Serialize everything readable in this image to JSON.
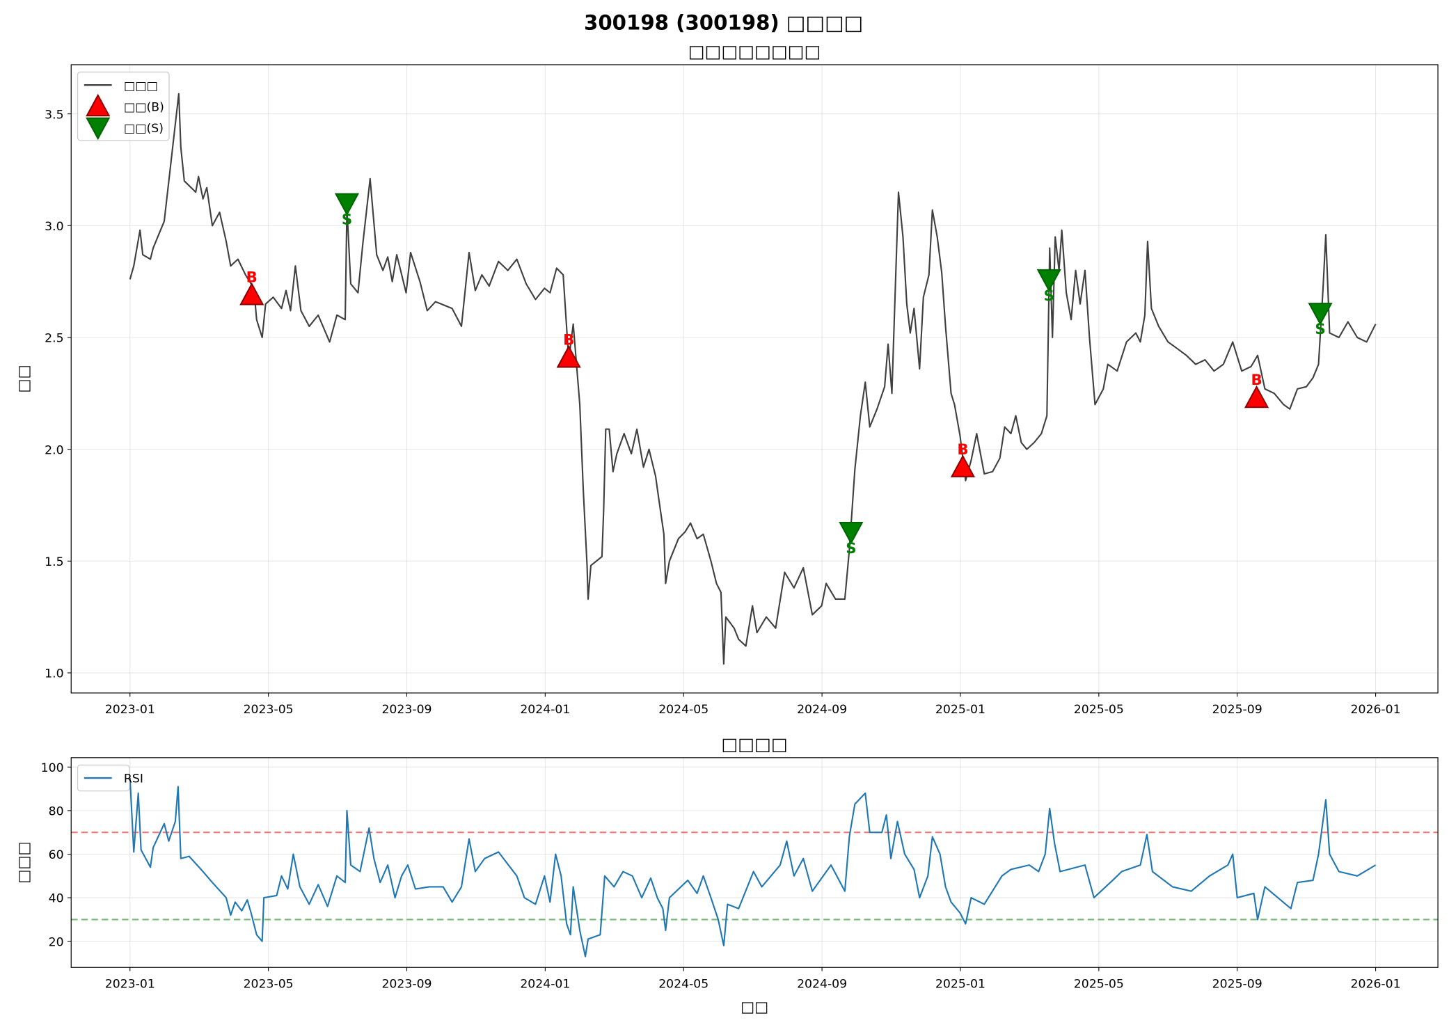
{
  "title": "300198 (300198) □□□□",
  "chart_data": [
    {
      "type": "line",
      "title": "□□□□□□□□",
      "ylabel": "□□",
      "xlim": [
        -1.7,
        37.8
      ],
      "ylim": [
        0.91,
        3.72
      ],
      "grid": true,
      "legend": "upper left",
      "xticks": [
        {
          "value": 0,
          "label": "2023-01"
        },
        {
          "value": 4,
          "label": "2023-05"
        },
        {
          "value": 8,
          "label": "2023-09"
        },
        {
          "value": 12,
          "label": "2024-01"
        },
        {
          "value": 16,
          "label": "2024-05"
        },
        {
          "value": 20,
          "label": "2024-09"
        },
        {
          "value": 24,
          "label": "2025-01"
        },
        {
          "value": 28,
          "label": "2025-05"
        },
        {
          "value": 32,
          "label": "2025-09"
        },
        {
          "value": 36,
          "label": "2026-01"
        }
      ],
      "yticks": [
        {
          "value": 1.0,
          "label": "1.0"
        },
        1.5,
        {
          "value": 2.0,
          "label": "2.0"
        },
        2.5,
        {
          "value": 3.0,
          "label": "3.0"
        },
        3.5
      ],
      "series": [
        {
          "name": "□□□",
          "type": "line",
          "color": "#404040",
          "x": [
            0,
            0.11,
            0.29,
            0.37,
            0.59,
            0.67,
            0.99,
            1.41,
            1.47,
            1.57,
            1.9,
            1.98,
            2.11,
            2.22,
            2.38,
            2.59,
            2.78,
            2.91,
            3.12,
            3.34,
            3.58,
            3.66,
            3.82,
            3.92,
            4.14,
            4.38,
            4.51,
            4.64,
            4.78,
            4.94,
            5.18,
            5.44,
            5.77,
            5.98,
            6.22,
            6.27,
            6.38,
            6.59,
            6.73,
            6.94,
            7.13,
            7.31,
            7.45,
            7.58,
            7.71,
            7.98,
            8.11,
            8.38,
            8.59,
            8.83,
            9.31,
            9.58,
            9.8,
            9.98,
            10.17,
            10.38,
            10.65,
            10.92,
            11.18,
            11.45,
            11.72,
            11.98,
            12.14,
            12.33,
            12.52,
            12.68,
            12.81,
            13.0,
            13.1,
            13.21,
            13.24,
            13.32,
            13.64,
            13.69,
            13.75,
            13.85,
            13.96,
            14.07,
            14.28,
            14.49,
            14.65,
            14.84,
            15.0,
            15.19,
            15.29,
            15.43,
            15.48,
            15.59,
            15.85,
            16.04,
            16.2,
            16.39,
            16.57,
            16.79,
            16.95,
            17.08,
            17.16,
            17.22,
            17.46,
            17.59,
            17.8,
            17.99,
            18.12,
            18.39,
            18.66,
            18.92,
            19.19,
            19.46,
            19.72,
            19.99,
            20.12,
            20.39,
            20.66,
            20.79,
            20.95,
            21.11,
            21.25,
            21.38,
            21.59,
            21.81,
            21.91,
            22.02,
            22.07,
            22.21,
            22.34,
            22.45,
            22.55,
            22.66,
            22.82,
            22.93,
            23.09,
            23.19,
            23.33,
            23.46,
            23.57,
            23.73,
            23.83,
            23.99,
            24.15,
            24.31,
            24.47,
            24.69,
            24.93,
            25.14,
            25.28,
            25.46,
            25.6,
            25.76,
            25.92,
            26.13,
            26.34,
            26.5,
            26.58,
            26.66,
            26.74,
            26.85,
            26.93,
            27.06,
            27.2,
            27.33,
            27.46,
            27.6,
            27.73,
            27.89,
            28.13,
            28.26,
            28.53,
            28.8,
            29.07,
            29.2,
            29.33,
            29.41,
            29.52,
            29.73,
            30.0,
            30.27,
            30.53,
            30.8,
            31.07,
            31.33,
            31.6,
            31.87,
            32.13,
            32.4,
            32.59,
            32.8,
            33.07,
            33.34,
            33.52,
            33.74,
            34.0,
            34.19,
            34.35,
            34.48,
            34.56,
            34.67,
            34.94,
            35.2,
            35.47,
            35.74,
            36.0
          ],
          "values": [
            2.76,
            2.82,
            2.98,
            2.87,
            2.85,
            2.9,
            3.02,
            3.59,
            3.35,
            3.2,
            3.15,
            3.22,
            3.12,
            3.17,
            3.0,
            3.06,
            2.93,
            2.82,
            2.85,
            2.78,
            2.72,
            2.58,
            2.5,
            2.65,
            2.68,
            2.63,
            2.71,
            2.62,
            2.82,
            2.62,
            2.55,
            2.6,
            2.48,
            2.6,
            2.58,
            3.08,
            2.74,
            2.7,
            2.92,
            3.21,
            2.87,
            2.8,
            2.86,
            2.75,
            2.87,
            2.7,
            2.88,
            2.75,
            2.62,
            2.66,
            2.63,
            2.55,
            2.88,
            2.71,
            2.78,
            2.73,
            2.84,
            2.8,
            2.85,
            2.74,
            2.67,
            2.72,
            2.7,
            2.81,
            2.78,
            2.4,
            2.56,
            2.2,
            1.82,
            1.48,
            1.33,
            1.48,
            1.52,
            1.73,
            2.09,
            2.09,
            1.9,
            1.98,
            2.07,
            1.98,
            2.09,
            1.92,
            2.0,
            1.88,
            1.77,
            1.62,
            1.4,
            1.5,
            1.6,
            1.63,
            1.67,
            1.6,
            1.62,
            1.5,
            1.4,
            1.36,
            1.04,
            1.25,
            1.2,
            1.15,
            1.12,
            1.3,
            1.18,
            1.25,
            1.2,
            1.45,
            1.38,
            1.47,
            1.26,
            1.3,
            1.4,
            1.33,
            1.33,
            1.55,
            1.91,
            2.15,
            2.3,
            2.1,
            2.18,
            2.28,
            2.47,
            2.25,
            2.49,
            3.15,
            2.95,
            2.65,
            2.52,
            2.63,
            2.36,
            2.68,
            2.78,
            3.07,
            2.95,
            2.79,
            2.55,
            2.25,
            2.2,
            2.06,
            1.86,
            1.95,
            2.07,
            1.89,
            1.9,
            1.96,
            2.1,
            2.07,
            2.15,
            2.03,
            2.0,
            2.03,
            2.07,
            2.15,
            2.9,
            2.5,
            2.95,
            2.8,
            2.98,
            2.7,
            2.58,
            2.8,
            2.65,
            2.8,
            2.5,
            2.2,
            2.27,
            2.38,
            2.35,
            2.48,
            2.52,
            2.48,
            2.6,
            2.93,
            2.63,
            2.55,
            2.48,
            2.45,
            2.42,
            2.38,
            2.4,
            2.35,
            2.38,
            2.48,
            2.35,
            2.37,
            2.42,
            2.27,
            2.25,
            2.2,
            2.18,
            2.27,
            2.28,
            2.32,
            2.38,
            2.72,
            2.96,
            2.52,
            2.5,
            2.57,
            2.5,
            2.48,
            2.56
          ]
        },
        {
          "name": "□□(B)",
          "type": "scatter",
          "marker": "triangle-up",
          "color": "#ff0000",
          "edgecolor": "#8b0000",
          "marker_label": "B",
          "x": [
            3.52,
            12.68,
            24.07,
            32.56
          ],
          "values": [
            2.69,
            2.41,
            1.92,
            2.23
          ]
        },
        {
          "name": "□□(S)",
          "type": "scatter",
          "marker": "triangle-down",
          "color": "#008000",
          "edgecolor": "#006400",
          "marker_label": "S",
          "x": [
            6.27,
            20.84,
            26.56,
            34.4
          ],
          "values": [
            3.1,
            1.63,
            2.76,
            2.61
          ]
        }
      ]
    },
    {
      "type": "line",
      "title": "□□□□",
      "ylabel": "□□□",
      "xlabel": "□□",
      "xlim": [
        -1.7,
        37.8
      ],
      "ylim": [
        8,
        104.3
      ],
      "grid": true,
      "legend": "upper left",
      "xticks": [
        {
          "value": 0,
          "label": "2023-01"
        },
        {
          "value": 4,
          "label": "2023-05"
        },
        {
          "value": 8,
          "label": "2023-09"
        },
        {
          "value": 12,
          "label": "2024-01"
        },
        {
          "value": 16,
          "label": "2024-05"
        },
        {
          "value": 20,
          "label": "2024-09"
        },
        {
          "value": 24,
          "label": "2025-01"
        },
        {
          "value": 28,
          "label": "2025-05"
        },
        {
          "value": 32,
          "label": "2025-09"
        },
        {
          "value": 36,
          "label": "2026-01"
        }
      ],
      "yticks": [
        20,
        40,
        60,
        80,
        100
      ],
      "hlines": [
        {
          "value": 70,
          "color": "#ff0000"
        },
        {
          "value": 30,
          "color": "#008000"
        }
      ],
      "series": [
        {
          "name": "RSI",
          "type": "line",
          "color": "#1f77b4",
          "x": [
            0,
            0.11,
            0.24,
            0.32,
            0.59,
            0.67,
            0.99,
            1.12,
            1.31,
            1.39,
            1.47,
            1.71,
            2.11,
            2.38,
            2.78,
            2.91,
            3.04,
            3.23,
            3.39,
            3.5,
            3.66,
            3.82,
            3.87,
            4.24,
            4.38,
            4.56,
            4.72,
            4.91,
            5.18,
            5.44,
            5.71,
            5.98,
            6.22,
            6.27,
            6.38,
            6.65,
            6.91,
            7.05,
            7.23,
            7.45,
            7.66,
            7.85,
            8.03,
            8.25,
            8.65,
            9.05,
            9.31,
            9.58,
            9.8,
            9.98,
            10.25,
            10.65,
            11.18,
            11.4,
            11.72,
            11.98,
            12.14,
            12.3,
            12.46,
            12.62,
            12.73,
            12.81,
            13.0,
            13.16,
            13.24,
            13.59,
            13.72,
            13.99,
            14.25,
            14.52,
            14.79,
            15.05,
            15.24,
            15.4,
            15.48,
            15.59,
            16.12,
            16.39,
            16.57,
            16.79,
            17.0,
            17.16,
            17.27,
            17.59,
            18.02,
            18.26,
            18.79,
            18.98,
            19.19,
            19.46,
            19.72,
            20.26,
            20.66,
            20.79,
            20.95,
            21.25,
            21.38,
            21.73,
            21.86,
            21.99,
            22.18,
            22.39,
            22.66,
            22.82,
            23.06,
            23.19,
            23.41,
            23.57,
            23.73,
            23.99,
            24.15,
            24.31,
            24.69,
            25.2,
            25.46,
            25.99,
            26.26,
            26.45,
            26.58,
            26.72,
            26.88,
            27.6,
            27.86,
            28.4,
            28.66,
            29.2,
            29.39,
            29.55,
            30.13,
            30.67,
            31.2,
            31.73,
            31.87,
            32.0,
            32.48,
            32.59,
            32.8,
            33.55,
            33.74,
            34.19,
            34.35,
            34.56,
            34.67,
            34.94,
            35.47,
            36.0
          ],
          "values": [
            95,
            61,
            88,
            62,
            54,
            63,
            74,
            66,
            75,
            91,
            58,
            59,
            52,
            47,
            40,
            32,
            38,
            34,
            39,
            33,
            23,
            20,
            40,
            41,
            50,
            44,
            60,
            45,
            37,
            46,
            36,
            50,
            47,
            80,
            55,
            52,
            72,
            58,
            47,
            55,
            40,
            50,
            55,
            44,
            45,
            45,
            38,
            45,
            67,
            52,
            58,
            61,
            50,
            40,
            37,
            50,
            38,
            60,
            50,
            28,
            23,
            45,
            25,
            13,
            21,
            23,
            50,
            45,
            52,
            50,
            40,
            49,
            40,
            35,
            25,
            40,
            48,
            42,
            50,
            40,
            30,
            18,
            37,
            35,
            52,
            45,
            55,
            66,
            50,
            58,
            43,
            55,
            43,
            68,
            83,
            88,
            70,
            70,
            78,
            58,
            75,
            60,
            53,
            40,
            50,
            68,
            60,
            45,
            38,
            33,
            28,
            40,
            37,
            50,
            53,
            55,
            52,
            60,
            81,
            65,
            52,
            55,
            40,
            48,
            52,
            55,
            69,
            52,
            45,
            43,
            50,
            55,
            60,
            40,
            42,
            30,
            45,
            35,
            47,
            48,
            60,
            85,
            60,
            52,
            50,
            55
          ]
        }
      ]
    }
  ]
}
